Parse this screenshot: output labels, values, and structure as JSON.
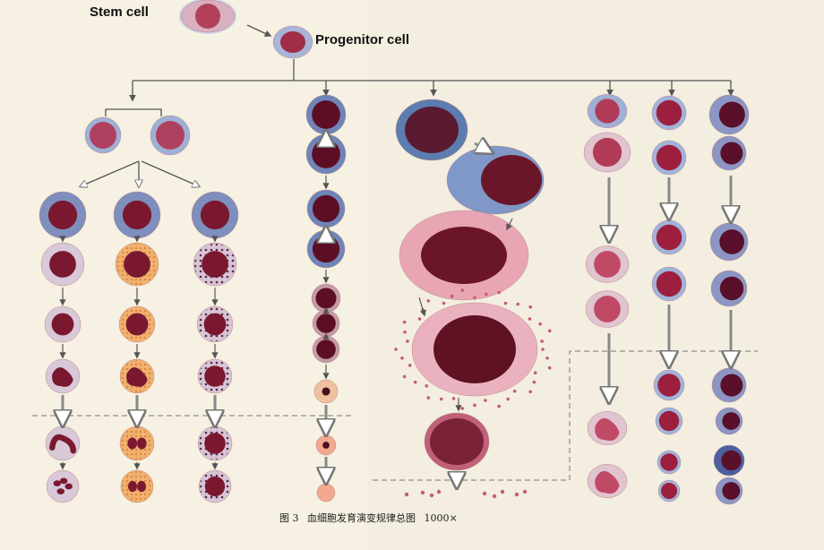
{
  "labels": {
    "stem": "Stem cell",
    "progenitor": "Progenitor cell"
  },
  "caption": {
    "figure": "图 3",
    "title": "血细胞发育演变规律总图",
    "magnification": "1000×"
  },
  "colors": {
    "background": "#f6f1e2",
    "nucleus": "#7a1830",
    "nucleus_dark": "#5c0f24",
    "cytoplasm_blue": "#8a9fc6",
    "cytoplasm_pink": "#e9b9c0",
    "granule_orange": "#e39b4a",
    "rbc": "#f0a090",
    "arrow": "#666666"
  },
  "lineages": [
    {
      "id": "neutrophil",
      "stages": 7
    },
    {
      "id": "eosinophil",
      "stages": 7
    },
    {
      "id": "basophil",
      "stages": 7
    },
    {
      "id": "erythroid",
      "stages": 12
    },
    {
      "id": "megakaryocyte",
      "stages": 5
    },
    {
      "id": "monocyte",
      "stages": 6
    },
    {
      "id": "lymphocyte",
      "stages": 8
    },
    {
      "id": "plasma-cell",
      "stages": 8
    }
  ]
}
